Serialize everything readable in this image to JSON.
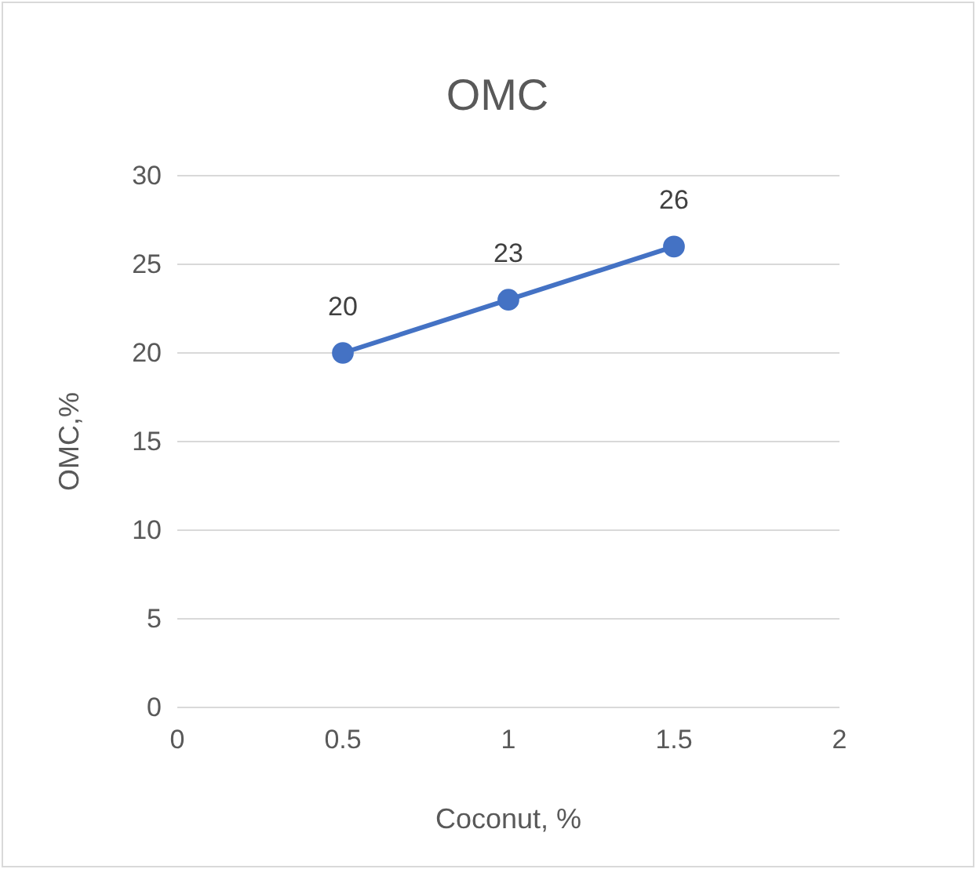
{
  "chart_data": {
    "type": "line",
    "title": "OMC",
    "xlabel": "Coconut, %",
    "ylabel": "OMC,%",
    "x": [
      0.5,
      1,
      1.5
    ],
    "series": [
      {
        "color": "#4472c4",
        "values": [
          20,
          23,
          26
        ]
      }
    ],
    "xlim": [
      0,
      2
    ],
    "xticks": [
      0,
      0.5,
      1,
      1.5,
      2
    ],
    "ylim": [
      0,
      30
    ],
    "yticks": [
      0,
      5,
      10,
      15,
      20,
      25,
      30
    ],
    "grid": "y",
    "marker": "circle",
    "data_labels": true
  }
}
